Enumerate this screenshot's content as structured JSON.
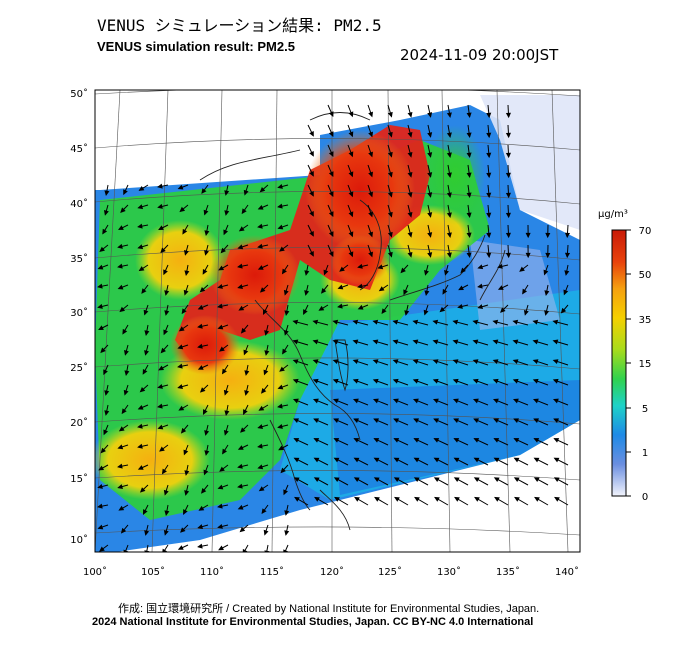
{
  "title_ja": "VENUS シミュレーション結果: PM2.5",
  "title_en": "VENUS simulation result: PM2.5",
  "timestamp": "2024-11-09 20:00JST",
  "lat_ticks": [
    "50˚",
    "45˚",
    "40˚",
    "35˚",
    "30˚",
    "25˚",
    "20˚",
    "15˚",
    "10˚"
  ],
  "lon_ticks": [
    "100˚",
    "105˚",
    "110˚",
    "115˚",
    "120˚",
    "125˚",
    "130˚",
    "135˚",
    "140˚"
  ],
  "colorbar": {
    "unit": "μg/m³",
    "labels": [
      "70",
      "50",
      "35",
      "15",
      "5",
      "1",
      "0"
    ],
    "colors": [
      "#d81e05",
      "#f07d0a",
      "#f5c400",
      "#9fd81b",
      "#26d85a",
      "#1ec9d9",
      "#1e78e6",
      "#7f9fe0",
      "#e6ecfa"
    ]
  },
  "credit_line1": "作成: 国立環境研究所 / Created by National Institute for Environmental Studies, Japan.",
  "credit_line2": "2024 National Institute for Environmental Studies, Japan. CC BY-NC 4.0 International",
  "colors": {
    "ocean_low": "#2a7be0",
    "high_pm": "#e0251a",
    "mid_pm": "#28d040"
  }
}
